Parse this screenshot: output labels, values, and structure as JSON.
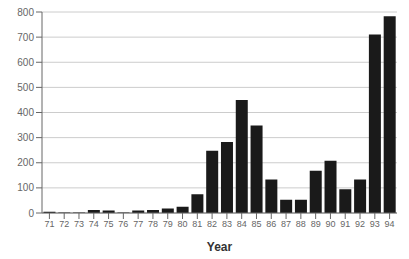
{
  "chart_data": {
    "type": "bar",
    "categories": [
      "71",
      "72",
      "73",
      "74",
      "75",
      "76",
      "77",
      "78",
      "79",
      "80",
      "81",
      "82",
      "83",
      "84",
      "85",
      "86",
      "87",
      "88",
      "89",
      "90",
      "91",
      "92",
      "93",
      "94"
    ],
    "values": [
      5,
      2,
      2,
      12,
      10,
      2,
      10,
      12,
      18,
      25,
      75,
      248,
      283,
      450,
      348,
      133,
      53,
      53,
      168,
      208,
      95,
      133,
      710,
      783
    ],
    "color": "#1a1a1a",
    "xlabel": "Year",
    "ylim": [
      0,
      800
    ],
    "yticks": [
      0,
      100,
      200,
      300,
      400,
      500,
      600,
      700,
      800
    ],
    "grid": true
  }
}
